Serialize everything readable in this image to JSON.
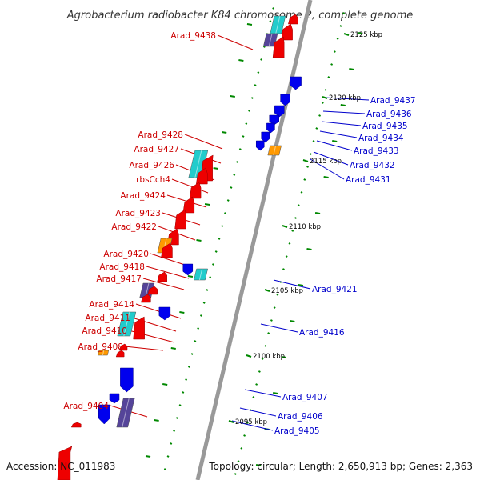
{
  "title": "Agrobacterium radiobacter K84 chromosome 2, complete genome",
  "accession": "Accession: NC_011983",
  "topology": "Topology: circular; Length: 2,650,913 bp; Genes: 2,363",
  "colors": {
    "forward_label": "#cc0000",
    "reverse_label": "#0000cc",
    "forward_gene": "#ee0000",
    "reverse_gene": "#0000ee",
    "rna_gene": "#22cccc",
    "pseudo_gene": "#ff9900",
    "other_gene": "#554499",
    "backbone": "#999999",
    "tick": "#008800"
  },
  "kbp_markers": [
    "2125 kbp",
    "2120 kbp",
    "2115 kbp",
    "2110 kbp",
    "2105 kbp",
    "2100 kbp",
    "2095 kbp"
  ],
  "forward_labels": [
    "Arad_9438",
    "Arad_9428",
    "Arad_9427",
    "Arad_9426",
    "rbsCch4",
    "Arad_9424",
    "Arad_9423",
    "Arad_9422",
    "Arad_9420",
    "Arad_9418",
    "Arad_9417",
    "Arad_9414",
    "Arad_9411",
    "Arad_9410",
    "Arad_9408",
    "Arad_9404"
  ],
  "reverse_labels": [
    "Arad_9437",
    "Arad_9436",
    "Arad_9435",
    "Arad_9434",
    "Arad_9433",
    "Arad_9432",
    "Arad_9431",
    "Arad_9421",
    "Arad_9416",
    "Arad_9407",
    "Arad_9406",
    "Arad_9405"
  ]
}
